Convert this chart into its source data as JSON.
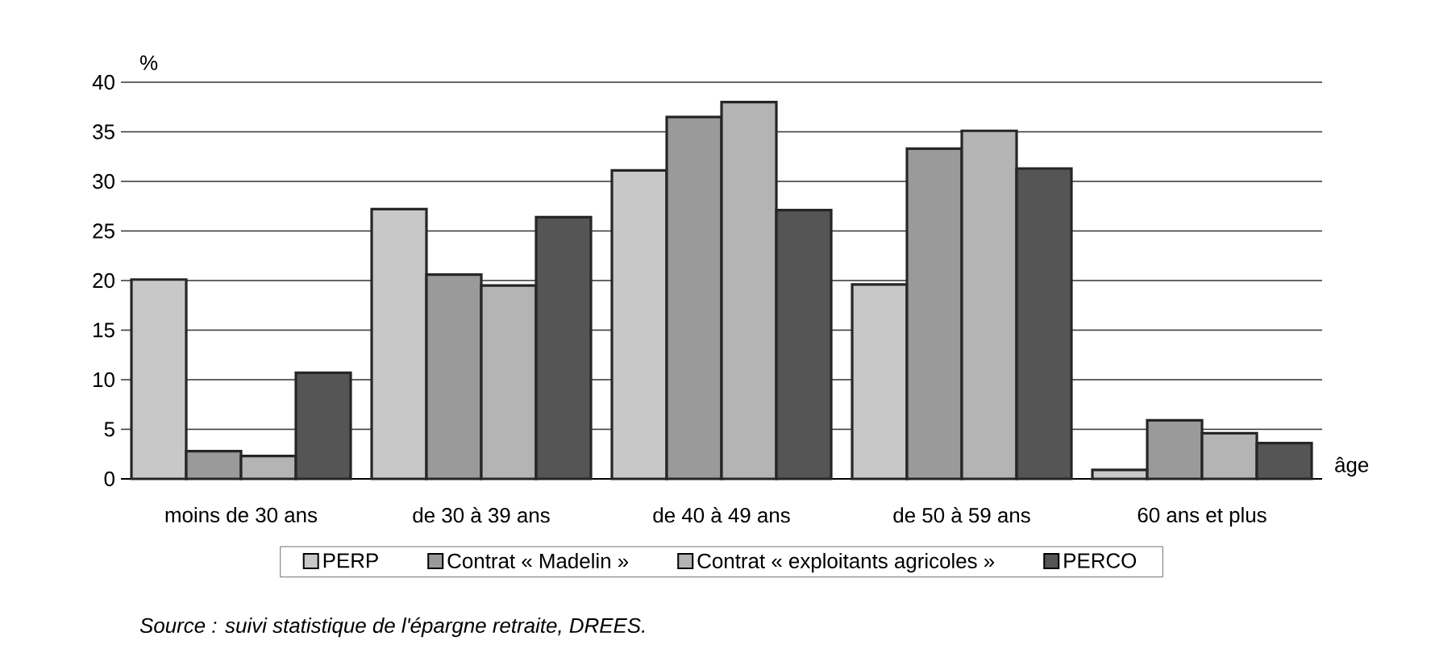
{
  "chart_data": {
    "type": "bar",
    "xlabel": "âge",
    "ylabel": "%",
    "categories": [
      "moins de 30 ans",
      "de 30 à 39 ans",
      "de 40 à 49 ans",
      "de 50 à 59 ans",
      "60 ans et plus"
    ],
    "series": [
      {
        "name": "PERP",
        "color": "#c8c8c8",
        "values": [
          20.1,
          27.2,
          31.1,
          19.6,
          0.9
        ]
      },
      {
        "name": "Contrat « Madelin »",
        "color": "#9a9a9a",
        "values": [
          2.8,
          20.6,
          36.5,
          33.3,
          5.9
        ]
      },
      {
        "name": "Contrat « exploitants agricoles »",
        "color": "#b4b4b4",
        "values": [
          2.3,
          19.5,
          38.0,
          35.1,
          4.6
        ]
      },
      {
        "name": "PERCO",
        "color": "#555555",
        "values": [
          10.7,
          26.4,
          27.1,
          31.3,
          3.6
        ]
      }
    ],
    "ylim": [
      0,
      40
    ],
    "yticks": [
      0,
      5,
      10,
      15,
      20,
      25,
      30,
      35,
      40
    ],
    "grid": "y",
    "legend": "bottom",
    "annotations": [
      "Source : suivi statistique de l'épargne retraite, DREES."
    ]
  }
}
